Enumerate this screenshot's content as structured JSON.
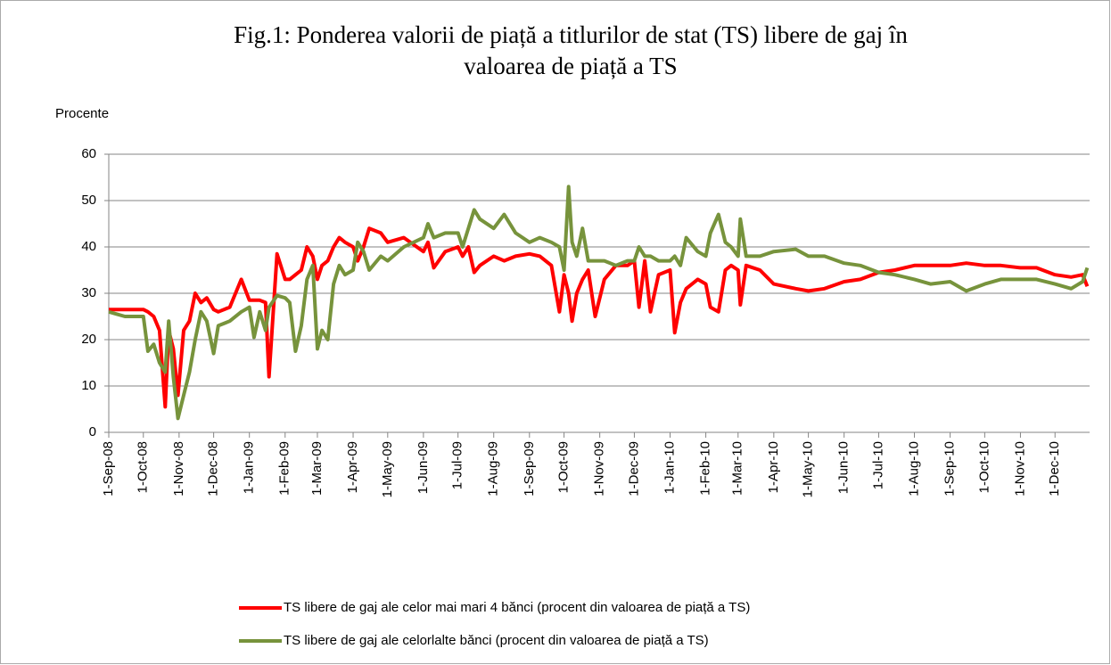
{
  "chart_data": {
    "type": "line",
    "title": [
      "Fig.1: Ponderea valorii de piață a titlurilor de stat (TS) libere de gaj în",
      "valoarea de piață a TS"
    ],
    "y_label": "Procente",
    "x": [
      "2008-09-01",
      "2008-09-15",
      "2008-10-01",
      "2008-10-05",
      "2008-10-10",
      "2008-10-15",
      "2008-10-20",
      "2008-10-23",
      "2008-10-27",
      "2008-10-31",
      "2008-11-05",
      "2008-11-10",
      "2008-11-15",
      "2008-11-20",
      "2008-11-25",
      "2008-12-01",
      "2008-12-05",
      "2008-12-15",
      "2008-12-25",
      "2009-01-01",
      "2009-01-05",
      "2009-01-10",
      "2009-01-15",
      "2009-01-18",
      "2009-01-25",
      "2009-02-01",
      "2009-02-05",
      "2009-02-10",
      "2009-02-15",
      "2009-02-20",
      "2009-02-25",
      "2009-03-01",
      "2009-03-05",
      "2009-03-10",
      "2009-03-15",
      "2009-03-20",
      "2009-03-25",
      "2009-04-01",
      "2009-04-05",
      "2009-04-10",
      "2009-04-15",
      "2009-04-25",
      "2009-05-01",
      "2009-05-15",
      "2009-06-01",
      "2009-06-05",
      "2009-06-10",
      "2009-06-20",
      "2009-07-01",
      "2009-07-05",
      "2009-07-10",
      "2009-07-15",
      "2009-07-20",
      "2009-08-01",
      "2009-08-10",
      "2009-08-20",
      "2009-09-01",
      "2009-09-10",
      "2009-09-20",
      "2009-09-27",
      "2009-10-01",
      "2009-10-05",
      "2009-10-08",
      "2009-10-12",
      "2009-10-17",
      "2009-10-22",
      "2009-10-28",
      "2009-11-05",
      "2009-11-15",
      "2009-11-25",
      "2009-12-01",
      "2009-12-05",
      "2009-12-10",
      "2009-12-15",
      "2009-12-22",
      "2010-01-01",
      "2010-01-05",
      "2010-01-10",
      "2010-01-15",
      "2010-01-25",
      "2010-02-01",
      "2010-02-05",
      "2010-02-12",
      "2010-02-18",
      "2010-02-23",
      "2010-03-01",
      "2010-03-03",
      "2010-03-08",
      "2010-03-20",
      "2010-04-01",
      "2010-04-20",
      "2010-05-01",
      "2010-05-15",
      "2010-06-01",
      "2010-06-15",
      "2010-07-01",
      "2010-07-15",
      "2010-08-01",
      "2010-08-15",
      "2010-09-01",
      "2010-09-15",
      "2010-10-01",
      "2010-10-15",
      "2010-11-01",
      "2010-11-15",
      "2010-12-01",
      "2010-12-15",
      "2010-12-25",
      "2010-12-29"
    ],
    "series": [
      {
        "name": "TS libere de gaj ale celor mai mari 4 bănci (procent din valoarea de piață a TS)",
        "color": "#ff0000",
        "values": [
          26.5,
          26.5,
          26.5,
          26,
          25,
          22,
          5.5,
          22,
          18,
          8,
          22,
          24,
          30,
          28,
          29,
          26.5,
          26,
          27,
          33,
          28.5,
          28.5,
          28.5,
          28,
          12,
          38.5,
          33,
          33,
          34,
          35,
          40,
          38,
          33,
          36,
          37,
          40,
          42,
          41,
          40,
          37,
          40,
          44,
          43,
          41,
          42,
          39,
          41,
          35.5,
          39,
          40,
          38,
          40,
          34.5,
          36,
          38,
          37,
          38,
          38.5,
          38,
          36,
          26,
          34,
          30,
          24,
          30,
          33,
          35,
          25,
          33,
          36,
          36,
          37,
          27,
          37,
          26,
          34,
          35,
          21.5,
          28,
          31,
          33,
          32,
          27,
          26,
          35,
          36,
          35,
          27.5,
          36,
          35,
          32,
          31,
          30.5,
          31,
          32.5,
          33,
          34.5,
          35,
          36,
          36,
          36,
          36.5,
          36,
          36,
          35.5,
          35.5,
          34,
          33.5,
          34,
          31.5
        ]
      },
      {
        "name": "TS libere de gaj ale celorlalte bănci (procent din valoarea de piață a TS)",
        "color": "#77933c",
        "values": [
          26,
          25,
          25,
          17.5,
          19,
          15,
          13,
          24,
          12,
          3,
          8,
          13,
          20,
          26,
          24,
          17,
          23,
          24,
          26,
          27,
          20.5,
          26,
          22,
          27,
          29.5,
          29,
          28,
          17.5,
          23,
          33,
          36,
          18,
          22,
          20,
          32,
          36,
          34,
          35,
          41,
          39,
          35,
          38,
          37,
          40,
          42,
          45,
          42,
          43,
          43,
          40,
          44,
          48,
          46,
          44,
          47,
          43,
          41,
          42,
          41,
          40,
          35,
          53,
          41,
          38,
          44,
          37,
          37,
          37,
          36,
          37,
          37,
          40,
          38,
          38,
          37,
          37,
          38,
          36,
          42,
          39,
          38,
          43,
          47,
          41,
          40,
          38,
          46,
          38,
          38,
          39,
          39.5,
          38,
          38,
          36.5,
          36,
          34.5,
          34,
          33,
          32,
          32.5,
          30.5,
          32,
          33,
          33,
          33,
          32,
          31,
          32.5,
          35.5
        ]
      }
    ],
    "xlim": [
      "2008-09-01",
      "2010-12-31"
    ],
    "xticks": [
      {
        "value": "2008-09-01",
        "label": "1-Sep-08"
      },
      {
        "value": "2008-10-01",
        "label": "1-Oct-08"
      },
      {
        "value": "2008-11-01",
        "label": "1-Nov-08"
      },
      {
        "value": "2008-12-01",
        "label": "1-Dec-08"
      },
      {
        "value": "2009-01-01",
        "label": "1-Jan-09"
      },
      {
        "value": "2009-02-01",
        "label": "1-Feb-09"
      },
      {
        "value": "2009-03-01",
        "label": "1-Mar-09"
      },
      {
        "value": "2009-04-01",
        "label": "1-Apr-09"
      },
      {
        "value": "2009-05-01",
        "label": "1-May-09"
      },
      {
        "value": "2009-06-01",
        "label": "1-Jun-09"
      },
      {
        "value": "2009-07-01",
        "label": "1-Jul-09"
      },
      {
        "value": "2009-08-01",
        "label": "1-Aug-09"
      },
      {
        "value": "2009-09-01",
        "label": "1-Sep-09"
      },
      {
        "value": "2009-10-01",
        "label": "1-Oct-09"
      },
      {
        "value": "2009-11-01",
        "label": "1-Nov-09"
      },
      {
        "value": "2009-12-01",
        "label": "1-Dec-09"
      },
      {
        "value": "2010-01-01",
        "label": "1-Jan-10"
      },
      {
        "value": "2010-02-01",
        "label": "1-Feb-10"
      },
      {
        "value": "2010-03-01",
        "label": "1-Mar-10"
      },
      {
        "value": "2010-04-01",
        "label": "1-Apr-10"
      },
      {
        "value": "2010-05-01",
        "label": "1-May-10"
      },
      {
        "value": "2010-06-01",
        "label": "1-Jun-10"
      },
      {
        "value": "2010-07-01",
        "label": "1-Jul-10"
      },
      {
        "value": "2010-08-01",
        "label": "1-Aug-10"
      },
      {
        "value": "2010-09-01",
        "label": "1-Sep-10"
      },
      {
        "value": "2010-10-01",
        "label": "1-Oct-10"
      },
      {
        "value": "2010-11-01",
        "label": "1-Nov-10"
      },
      {
        "value": "2010-12-01",
        "label": "1-Dec-10"
      }
    ],
    "ylim": [
      0,
      60
    ],
    "yticks": [
      0,
      10,
      20,
      30,
      40,
      50,
      60
    ],
    "grid": true,
    "legend": "bottom"
  }
}
